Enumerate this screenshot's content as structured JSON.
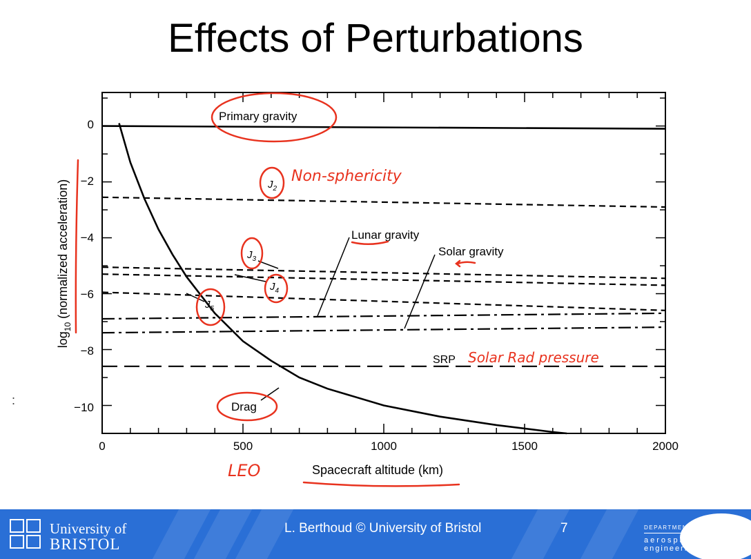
{
  "slide": {
    "title": "Effects of Perturbations",
    "side_mark": ":"
  },
  "chart_data": {
    "type": "line",
    "xlabel": "Spacecraft altitude (km)",
    "ylabel": "log10 (normalized acceleration)",
    "ylabel_parts": {
      "prefix": "log",
      "sub": "10",
      "suffix": " (normalized acceleration)"
    },
    "xlim": [
      0,
      2000
    ],
    "ylim": [
      -11,
      1.2
    ],
    "x_ticks": [
      0,
      500,
      1000,
      1500,
      2000
    ],
    "x_tick_labels": [
      "0",
      "500",
      "1000",
      "1500",
      "2000"
    ],
    "y_ticks": [
      0,
      -2,
      -4,
      -6,
      -8,
      -10
    ],
    "y_tick_labels": [
      "0",
      "−2",
      "−4",
      "−6",
      "−8",
      "−10"
    ],
    "series": [
      {
        "name": "Primary gravity",
        "style": "solid",
        "x": [
          0,
          2000
        ],
        "y": [
          0,
          -0.1
        ]
      },
      {
        "name": "J2",
        "style": "dashed",
        "x": [
          0,
          2000
        ],
        "y": [
          -2.55,
          -2.9
        ]
      },
      {
        "name": "J3",
        "style": "dashed",
        "x": [
          0,
          2000
        ],
        "y": [
          -5.05,
          -5.45
        ]
      },
      {
        "name": "J4",
        "style": "dashed",
        "x": [
          0,
          2000
        ],
        "y": [
          -5.3,
          -5.7
        ]
      },
      {
        "name": "J5",
        "style": "dashed",
        "x": [
          0,
          2000
        ],
        "y": [
          -5.95,
          -6.6
        ]
      },
      {
        "name": "Lunar gravity",
        "style": "dashdot",
        "x": [
          0,
          2000
        ],
        "y": [
          -6.9,
          -6.7
        ]
      },
      {
        "name": "Solar gravity",
        "style": "dashdot",
        "x": [
          0,
          2000
        ],
        "y": [
          -7.4,
          -7.2
        ]
      },
      {
        "name": "SRP",
        "style": "longdash",
        "x": [
          0,
          2000
        ],
        "y": [
          -8.6,
          -8.6
        ]
      },
      {
        "name": "Drag",
        "style": "solid",
        "x": [
          60,
          100,
          150,
          200,
          250,
          300,
          400,
          500,
          600,
          700,
          800,
          1000,
          1200,
          1400,
          1600,
          1650
        ],
        "y": [
          0.1,
          -1.3,
          -2.6,
          -3.7,
          -4.6,
          -5.4,
          -6.7,
          -7.7,
          -8.4,
          -9.0,
          -9.4,
          -10.0,
          -10.4,
          -10.7,
          -10.95,
          -11.0
        ]
      }
    ],
    "labels": {
      "primary": "Primary gravity",
      "j2_main": "J",
      "j2_sub": "2",
      "j3_main": "J",
      "j3_sub": "3",
      "j4_main": "J",
      "j4_sub": "4",
      "j5_main": "J",
      "j5_sub": "5",
      "lunar": "Lunar gravity",
      "solar": "Solar gravity",
      "srp": "SRP",
      "drag": "Drag"
    },
    "annotations": {
      "non_sphericity": "Non-sphericity",
      "solar_rad": "Solar Rad pressure",
      "leo": "LEO"
    },
    "colors": {
      "ink": "#000000",
      "annotation": "#e8321e"
    }
  },
  "footer": {
    "university_line1": "University of",
    "university_line2": "BRISTOL",
    "credit": "L. Berthoud © University of Bristol",
    "page_number": "7",
    "dept_line1": "DEPARTMENT OF",
    "dept_line2": "aerospace",
    "dept_line3": "engineering",
    "colors": {
      "background": "#2a6fd6",
      "text": "#ffffff"
    }
  }
}
